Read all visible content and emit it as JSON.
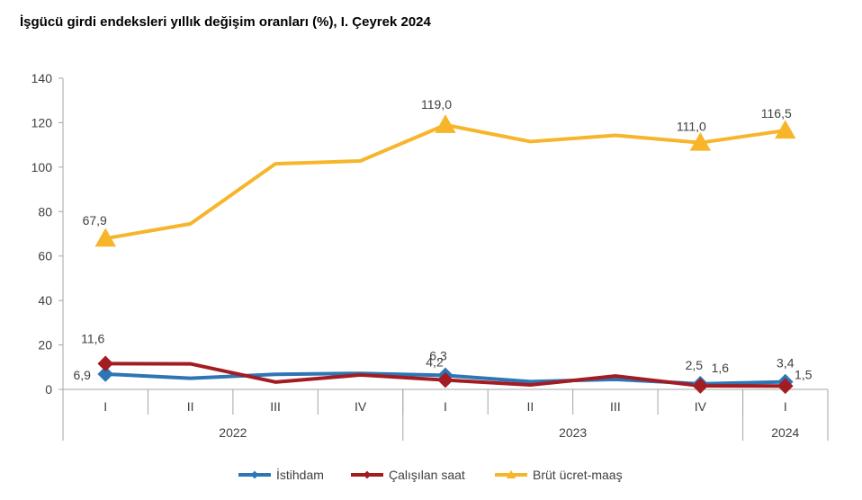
{
  "chart_data": {
    "type": "line",
    "title": "İşgücü girdi endeksleri yıllık değişim oranları (%), I. Çeyrek 2024",
    "categories": [
      "I",
      "II",
      "III",
      "IV",
      "I",
      "II",
      "III",
      "IV",
      "I"
    ],
    "year_groups": [
      {
        "label": "2022",
        "start": 0,
        "end": 3
      },
      {
        "label": "2023",
        "start": 4,
        "end": 7
      },
      {
        "label": "2024",
        "start": 8,
        "end": 8
      }
    ],
    "ylim": [
      0,
      140
    ],
    "yticks": [
      0,
      20,
      40,
      60,
      80,
      100,
      120,
      140
    ],
    "grid": false,
    "legend_position": "bottom",
    "series": [
      {
        "name": "İstihdam",
        "color": "#2E75B6",
        "marker": "diamond",
        "values": [
          6.9,
          5.0,
          6.8,
          7.2,
          6.3,
          3.5,
          4.5,
          2.5,
          3.4
        ],
        "labels": {
          "0": "6,9",
          "4": "6,3",
          "7": "2,5",
          "8": "3,4"
        }
      },
      {
        "name": "Çalışılan saat",
        "color": "#A31C22",
        "marker": "diamond",
        "values": [
          11.6,
          11.5,
          3.3,
          6.5,
          4.2,
          2.0,
          6.0,
          1.6,
          1.5
        ],
        "labels": {
          "0": "11,6",
          "4": "4,2",
          "7": "1,6",
          "8": "1,5"
        }
      },
      {
        "name": "Brüt ücret-maaş",
        "color": "#F6B52A",
        "marker": "triangle",
        "values": [
          67.9,
          74.5,
          101.5,
          102.8,
          119.0,
          111.5,
          114.3,
          111.0,
          116.5
        ],
        "labels": {
          "0": "67,9",
          "4": "119,0",
          "7": "111,0",
          "8": "116,5"
        }
      }
    ]
  },
  "colors": {
    "axis": "#A6A6A6",
    "text": "#404040"
  }
}
